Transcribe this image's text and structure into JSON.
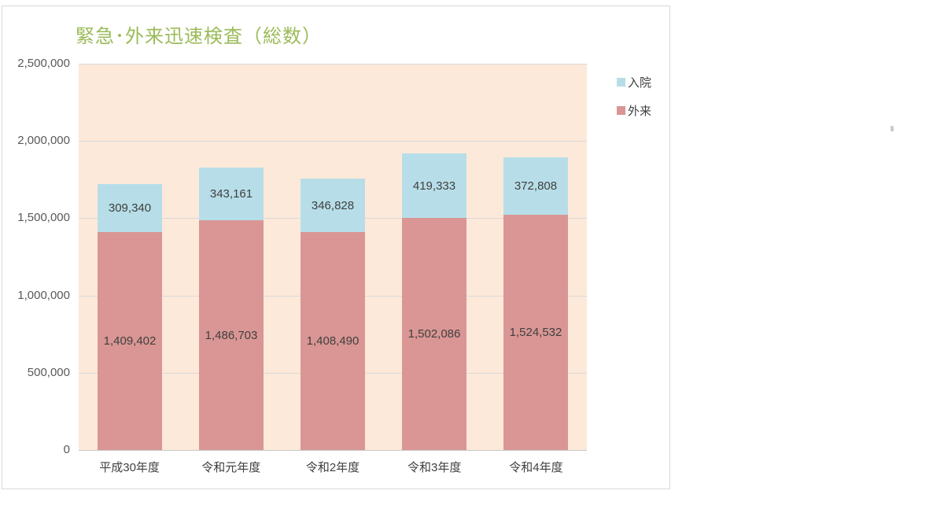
{
  "chart_data": {
    "type": "bar",
    "stacked": true,
    "title": "緊急･外来迅速検査（総数）",
    "title_color": "#9bbb59",
    "plot_bg": "#fde9d9",
    "grid": true,
    "gridline_color": "#d9d9d9",
    "axis_line_color": "#c6c6c6",
    "data_label_color": "#3f3f3f",
    "ytick_color": "#595959",
    "xtick_color": "#3f3f3f",
    "categories": [
      "平成30年度",
      "令和元年度",
      "令和2年度",
      "令和3年度",
      "令和4年度"
    ],
    "series": [
      {
        "id": "outpatient",
        "name": "外来",
        "color": "#d99694",
        "values": [
          1409402,
          1486703,
          1408490,
          1502086,
          1524532
        ],
        "labels": [
          "1,409,402",
          "1,486,703",
          "1,408,490",
          "1,502,086",
          "1,524,532"
        ]
      },
      {
        "id": "inpatient",
        "name": "入院",
        "color": "#b7dee8",
        "values": [
          309340,
          343161,
          346828,
          419333,
          372808
        ],
        "labels": [
          "309,340",
          "343,161",
          "346,828",
          "419,333",
          "372,808"
        ]
      }
    ],
    "legend": {
      "position": "top-right",
      "items": [
        {
          "id": "inpatient",
          "label": "入院",
          "color": "#b7dee8"
        },
        {
          "id": "outpatient",
          "label": "外来",
          "color": "#d99694"
        }
      ]
    },
    "ylim": [
      0,
      2500000
    ],
    "ytick_interval": 500000,
    "ytick_labels": [
      "0",
      "500,000",
      "1,000,000",
      "1,500,000",
      "2,000,000",
      "2,500,000"
    ],
    "xlabel": "",
    "ylabel": ""
  }
}
